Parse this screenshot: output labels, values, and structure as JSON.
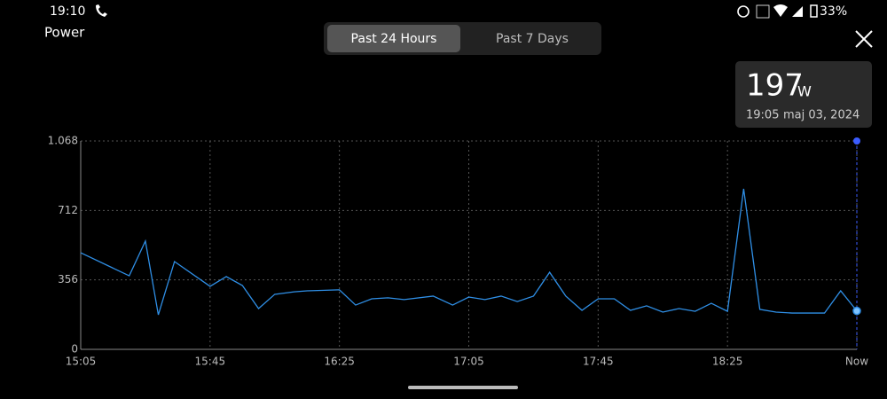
{
  "status_bar": {
    "time": "19:10",
    "battery": "33%"
  },
  "header": {
    "title": "Power",
    "tabs": [
      "Past 24 Hours",
      "Past 7 Days"
    ]
  },
  "tooltip": {
    "value": "197",
    "unit": "W",
    "time": "19:05",
    "date": "maj 03, 2024"
  },
  "chart_data": {
    "type": "line",
    "color": "#2f8fe6",
    "grid": true,
    "xlim": [
      0,
      240
    ],
    "xticks": [
      {
        "value": 0,
        "label": "15:05"
      },
      {
        "value": 40,
        "label": "15:45"
      },
      {
        "value": 80,
        "label": "16:25"
      },
      {
        "value": 120,
        "label": "17:05"
      },
      {
        "value": 160,
        "label": "17:45"
      },
      {
        "value": 200,
        "label": "18:25"
      },
      {
        "value": 240,
        "label": "Now"
      }
    ],
    "ylim": [
      0,
      1068
    ],
    "yticks": [
      0,
      356,
      712,
      {
        "value": 1068,
        "label": "1.068"
      }
    ],
    "x": [
      0,
      15,
      20,
      24,
      29,
      40,
      45,
      50,
      55,
      60,
      66,
      70,
      80,
      85,
      90,
      95,
      100,
      109,
      115,
      120,
      125,
      130,
      135,
      140,
      145,
      150,
      155,
      160,
      165,
      170,
      175,
      180,
      185,
      190,
      195,
      200,
      205,
      210,
      215,
      220,
      230,
      235,
      240
    ],
    "values": [
      495,
      377,
      555,
      177,
      450,
      323,
      373,
      327,
      209,
      282,
      295,
      300,
      305,
      227,
      259,
      264,
      255,
      273,
      227,
      268,
      255,
      273,
      245,
      273,
      395,
      273,
      200,
      259,
      259,
      200,
      223,
      191,
      209,
      195,
      236,
      195,
      823,
      205,
      191,
      186,
      186,
      300,
      197
    ]
  }
}
